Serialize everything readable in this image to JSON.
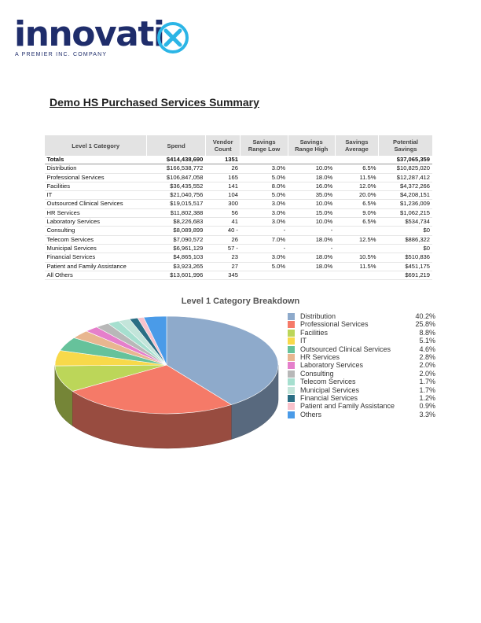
{
  "brand": {
    "logo_text": "innovatix",
    "tagline": "A PREMIER INC. COMPANY",
    "colors": {
      "navy": "#1f2d6b",
      "x_blue": "#2bb5e6"
    }
  },
  "report": {
    "title": "Demo HS Purchased Services Summary"
  },
  "table": {
    "headers": {
      "category": "Level 1 Category",
      "spend": "Spend",
      "vendor": "Vendor Count",
      "low": "Savings Range Low",
      "high": "Savings Range High",
      "avg": "Savings Average",
      "potential": "Potential Savings"
    },
    "totals": {
      "category": "Totals",
      "spend": "$414,438,690",
      "vendor": "1351",
      "low": "",
      "high": "",
      "avg": "",
      "potential": "$37,065,359"
    },
    "rows": [
      {
        "category": "Distribution",
        "spend": "$166,538,772",
        "vendor": "26",
        "low": "3.0%",
        "high": "10.0%",
        "avg": "6.5%",
        "potential": "$10,825,020"
      },
      {
        "category": "Professional Services",
        "spend": "$106,847,058",
        "vendor": "165",
        "low": "5.0%",
        "high": "18.0%",
        "avg": "11.5%",
        "potential": "$12,287,412"
      },
      {
        "category": "Facilities",
        "spend": "$36,435,552",
        "vendor": "141",
        "low": "8.0%",
        "high": "16.0%",
        "avg": "12.0%",
        "potential": "$4,372,266"
      },
      {
        "category": "IT",
        "spend": "$21,040,756",
        "vendor": "104",
        "low": "5.0%",
        "high": "35.0%",
        "avg": "20.0%",
        "potential": "$4,208,151"
      },
      {
        "category": "Outsourced Clinical Services",
        "spend": "$19,015,517",
        "vendor": "300",
        "low": "3.0%",
        "high": "10.0%",
        "avg": "6.5%",
        "potential": "$1,236,009"
      },
      {
        "category": "HR Services",
        "spend": "$11,802,388",
        "vendor": "56",
        "low": "3.0%",
        "high": "15.0%",
        "avg": "9.0%",
        "potential": "$1,062,215"
      },
      {
        "category": "Laboratory Services",
        "spend": "$8,226,683",
        "vendor": "41",
        "low": "3.0%",
        "high": "10.0%",
        "avg": "6.5%",
        "potential": "$534,734"
      },
      {
        "category": "Consulting",
        "spend": "$8,089,899",
        "vendor": "40 -",
        "low": "-",
        "high": "-",
        "avg": "",
        "potential": "$0"
      },
      {
        "category": "Telecom Services",
        "spend": "$7,090,572",
        "vendor": "26",
        "low": "7.0%",
        "high": "18.0%",
        "avg": "12.5%",
        "potential": "$886,322"
      },
      {
        "category": "Municipal Services",
        "spend": "$6,961,129",
        "vendor": "57 -",
        "low": "-",
        "high": "-",
        "avg": "",
        "potential": "$0"
      },
      {
        "category": "Financial Services",
        "spend": "$4,865,103",
        "vendor": "23",
        "low": "3.0%",
        "high": "18.0%",
        "avg": "10.5%",
        "potential": "$510,836"
      },
      {
        "category": "Patient and Family Assistance",
        "spend": "$3,923,265",
        "vendor": "27",
        "low": "5.0%",
        "high": "18.0%",
        "avg": "11.5%",
        "potential": "$451,175"
      },
      {
        "category": "All Others",
        "spend": "$13,601,996",
        "vendor": "345",
        "low": "",
        "high": "",
        "avg": "",
        "potential": "$691,219"
      }
    ]
  },
  "chart_data": {
    "type": "pie",
    "title": "Level 1 Category Breakdown",
    "legend_position": "right",
    "categories": [
      "Distribution",
      "Professional Services",
      "Facilities",
      "IT",
      "Outsourced Clinical Services",
      "HR Services",
      "Laboratory Services",
      "Consulting",
      "Telecom Services",
      "Municipal Services",
      "Financial Services",
      "Patient and Family Assistance",
      "Others"
    ],
    "values": [
      40.2,
      25.8,
      8.8,
      5.1,
      4.6,
      2.8,
      2.0,
      2.0,
      1.7,
      1.7,
      1.2,
      0.9,
      3.3
    ],
    "labels": [
      "40.2%",
      "25.8%",
      "8.8%",
      "5.1%",
      "4.6%",
      "2.8%",
      "2.0%",
      "2.0%",
      "1.7%",
      "1.7%",
      "1.2%",
      "0.9%",
      "3.3%"
    ],
    "colors": [
      "#8eaacb",
      "#f57a68",
      "#bcd659",
      "#f8d94a",
      "#66c29b",
      "#e8b690",
      "#e57fcb",
      "#b8b8b8",
      "#a6dfcf",
      "#c3e5da",
      "#2a6e84",
      "#f8c2cc",
      "#4a9be8"
    ]
  }
}
